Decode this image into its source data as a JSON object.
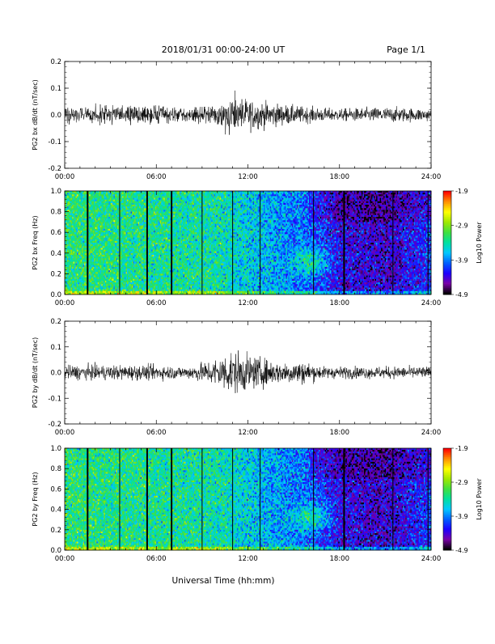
{
  "header": {
    "title": "2018/01/31  00:00-24:00 UT",
    "page": "Page 1/1"
  },
  "footer": {
    "xlabel": "Universal Time (hh:mm)"
  },
  "colors": {
    "waveform": "#000000",
    "spectrogram_scale": [
      "#000000",
      "#7a00a8",
      "#1e00ff",
      "#0060ff",
      "#00c8ff",
      "#00e0a0",
      "#40e040",
      "#a0e800",
      "#ffff00",
      "#ff9000",
      "#ff0000"
    ]
  },
  "chart_data": [
    {
      "type": "line",
      "ylabel": "PG2 bx dB/dt (nT/sec)",
      "x_ticks": [
        "00:00",
        "06:00",
        "12:00",
        "18:00",
        "24:00"
      ],
      "y_ticks": [
        "0.2",
        "0.1",
        "0.0",
        "-0.1",
        "-0.2"
      ],
      "xlim": [
        0,
        24
      ],
      "ylim": [
        -0.2,
        0.2
      ],
      "x_unit": "hours UT",
      "amplitude_envelope": [
        {
          "x": 0,
          "y": 0.025
        },
        {
          "x": 3,
          "y": 0.03
        },
        {
          "x": 6,
          "y": 0.03
        },
        {
          "x": 8,
          "y": 0.02
        },
        {
          "x": 9.5,
          "y": 0.035
        },
        {
          "x": 11,
          "y": 0.065
        },
        {
          "x": 12,
          "y": 0.05
        },
        {
          "x": 14,
          "y": 0.035
        },
        {
          "x": 16,
          "y": 0.025
        },
        {
          "x": 18,
          "y": 0.02
        },
        {
          "x": 21,
          "y": 0.025
        },
        {
          "x": 24,
          "y": 0.02
        }
      ]
    },
    {
      "type": "heatmap",
      "ylabel": "PG2 bx Freq (Hz)",
      "x_ticks": [
        "00:00",
        "06:00",
        "12:00",
        "18:00",
        "24:00"
      ],
      "y_ticks": [
        "1.0",
        "0.8",
        "0.6",
        "0.4",
        "0.2",
        "0.0"
      ],
      "xlim": [
        0,
        24
      ],
      "ylim": [
        0,
        1.0
      ],
      "colorbar": {
        "label": "Log10 Power",
        "ticks": [
          "-1.9",
          "-2.9",
          "-3.9",
          "-4.9"
        ],
        "range": [
          -4.9,
          -1.9
        ]
      },
      "data_gaps_hours": [
        1.5,
        3.6,
        5.4,
        7.0,
        9.0,
        11.0,
        12.8,
        16.3,
        18.3,
        21.5,
        23.8
      ],
      "power_profile": [
        {
          "x": 0,
          "level": 0.55
        },
        {
          "x": 6,
          "level": 0.52
        },
        {
          "x": 10,
          "level": 0.5
        },
        {
          "x": 13,
          "level": 0.4
        },
        {
          "x": 16,
          "level": 0.3
        },
        {
          "x": 18,
          "level": 0.18
        },
        {
          "x": 21,
          "level": 0.14
        },
        {
          "x": 24,
          "level": 0.25
        }
      ]
    },
    {
      "type": "line",
      "ylabel": "PG2 by dB/dt (nT/sec)",
      "x_ticks": [
        "00:00",
        "06:00",
        "12:00",
        "18:00",
        "24:00"
      ],
      "y_ticks": [
        "0.2",
        "0.1",
        "0.0",
        "-0.1",
        "-0.2"
      ],
      "xlim": [
        0,
        24
      ],
      "ylim": [
        -0.2,
        0.2
      ],
      "x_unit": "hours UT",
      "amplitude_envelope": [
        {
          "x": 0,
          "y": 0.025
        },
        {
          "x": 3,
          "y": 0.025
        },
        {
          "x": 6,
          "y": 0.025
        },
        {
          "x": 8,
          "y": 0.02
        },
        {
          "x": 9.5,
          "y": 0.04
        },
        {
          "x": 11,
          "y": 0.075
        },
        {
          "x": 12,
          "y": 0.06
        },
        {
          "x": 14,
          "y": 0.035
        },
        {
          "x": 15.5,
          "y": 0.04
        },
        {
          "x": 17,
          "y": 0.02
        },
        {
          "x": 20,
          "y": 0.02
        },
        {
          "x": 24,
          "y": 0.02
        }
      ]
    },
    {
      "type": "heatmap",
      "ylabel": "PG2 by Freq (Hz)",
      "x_ticks": [
        "00:00",
        "06:00",
        "12:00",
        "18:00",
        "24:00"
      ],
      "y_ticks": [
        "1.0",
        "0.8",
        "0.6",
        "0.4",
        "0.2",
        "0.0"
      ],
      "xlim": [
        0,
        24
      ],
      "ylim": [
        0,
        1.0
      ],
      "colorbar": {
        "label": "Log10 Power",
        "ticks": [
          "-1.9",
          "-2.9",
          "-3.9",
          "-4.9"
        ],
        "range": [
          -4.9,
          -1.9
        ]
      },
      "data_gaps_hours": [
        1.5,
        3.6,
        5.4,
        7.0,
        9.0,
        11.0,
        12.8,
        16.3,
        18.3,
        21.5,
        23.8
      ],
      "power_profile": [
        {
          "x": 0,
          "level": 0.55
        },
        {
          "x": 6,
          "level": 0.52
        },
        {
          "x": 10,
          "level": 0.5
        },
        {
          "x": 13,
          "level": 0.4
        },
        {
          "x": 16,
          "level": 0.3
        },
        {
          "x": 18,
          "level": 0.18
        },
        {
          "x": 21,
          "level": 0.14
        },
        {
          "x": 24,
          "level": 0.25
        }
      ]
    }
  ]
}
